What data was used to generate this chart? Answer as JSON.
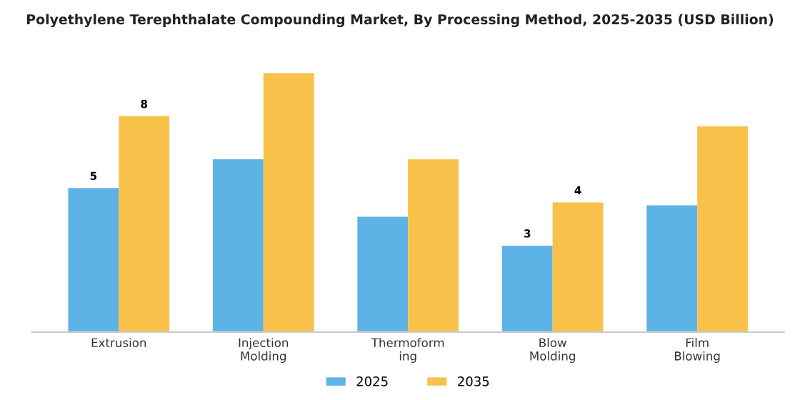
{
  "chart_data": {
    "type": "bar",
    "title": "Polyethylene Terephthalate Compounding Market, By Processing Method, 2025-2035 (USD Billion)",
    "categories": [
      "Extrusion",
      "Injection\nMolding",
      "Thermoform\ning",
      "Blow\nMolding",
      "Film\nBlowing"
    ],
    "series": [
      {
        "name": "2025",
        "color": "#5db3e6",
        "values": [
          5.0,
          6.0,
          4.0,
          3.0,
          4.4
        ],
        "value_labels": [
          "5",
          null,
          null,
          "3",
          null
        ]
      },
      {
        "name": "2035",
        "color": "#f8c24a",
        "values": [
          7.5,
          9.0,
          6.0,
          4.5,
          7.15
        ],
        "value_labels": [
          "8",
          null,
          null,
          "4",
          null
        ]
      }
    ],
    "legend": "bottom",
    "grid": false
  }
}
